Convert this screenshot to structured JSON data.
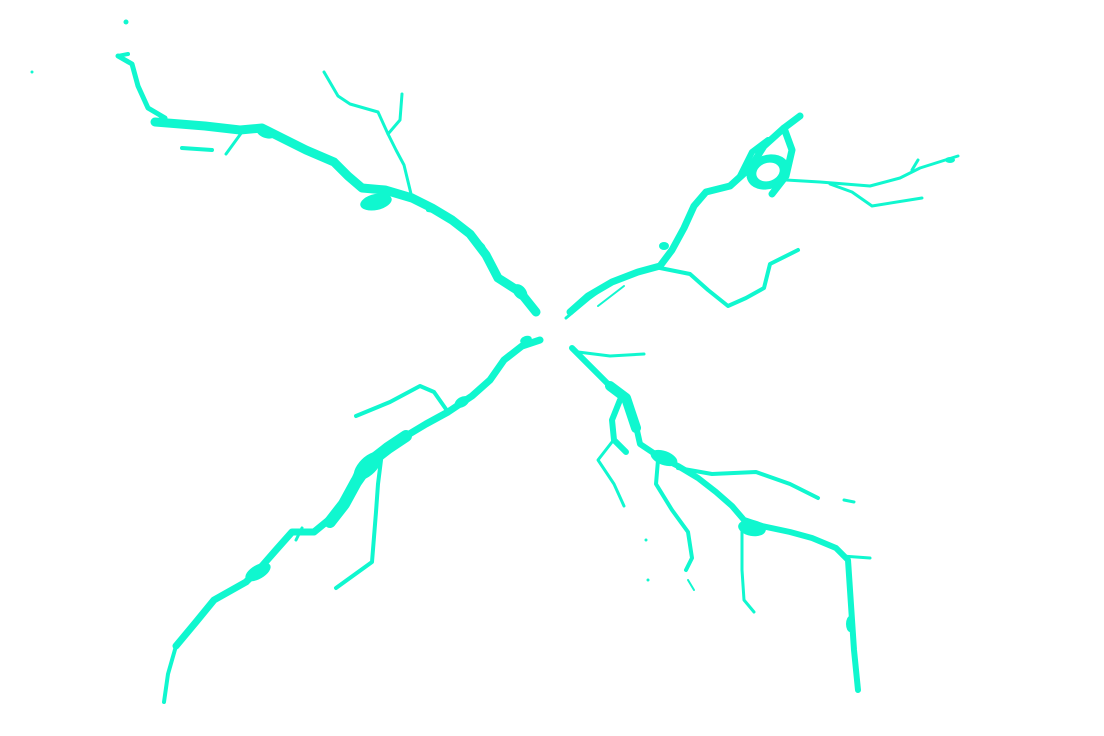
{
  "scene": {
    "background_color": "#ffffff",
    "crack_color": "#10F7CF",
    "branches": [
      {
        "name": "crack-branch-upper-left"
      },
      {
        "name": "crack-branch-upper-right"
      },
      {
        "name": "crack-branch-lower-left"
      },
      {
        "name": "crack-branch-lower-right"
      }
    ]
  }
}
